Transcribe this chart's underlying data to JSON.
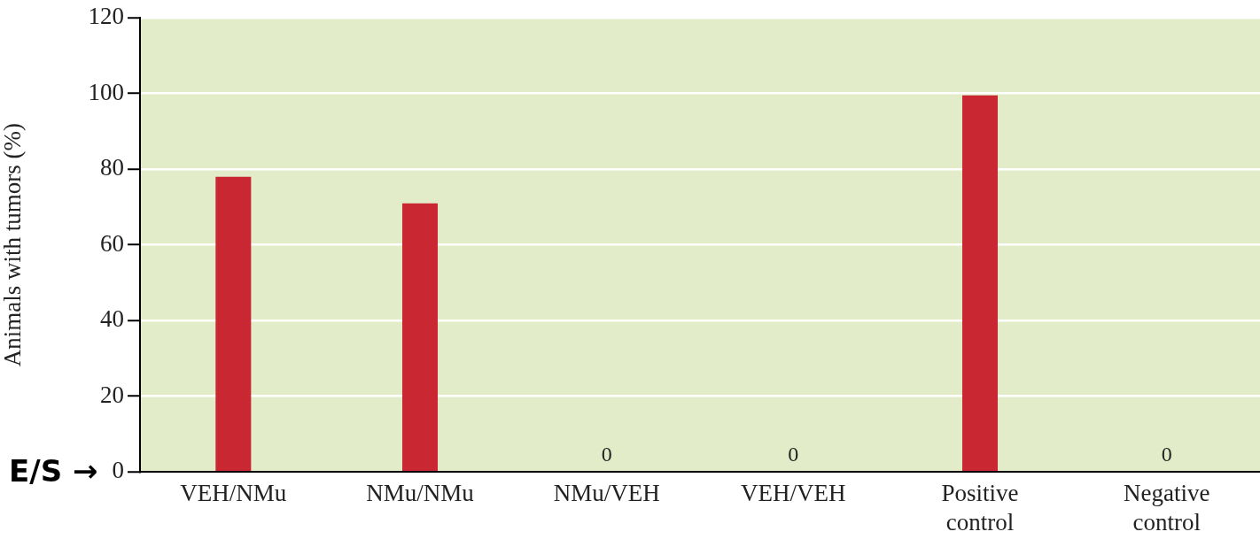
{
  "chart_data": {
    "type": "bar",
    "ylabel": "Animals with tumors (%)",
    "categories": [
      "VEH/NMu",
      "NMu/NMu",
      "NMu/VEH",
      "VEH/VEH",
      "Positive control",
      "Negative control"
    ],
    "values": [
      78,
      71,
      0,
      0,
      99.5,
      0
    ],
    "value_labels": [
      null,
      null,
      "0",
      "0",
      null,
      "0"
    ],
    "color": "#c92732",
    "ylim": [
      0,
      120
    ],
    "yticks": [
      0,
      20,
      40,
      60,
      80,
      100,
      120
    ],
    "grid": "y",
    "annotations": [
      "E/S →"
    ]
  }
}
